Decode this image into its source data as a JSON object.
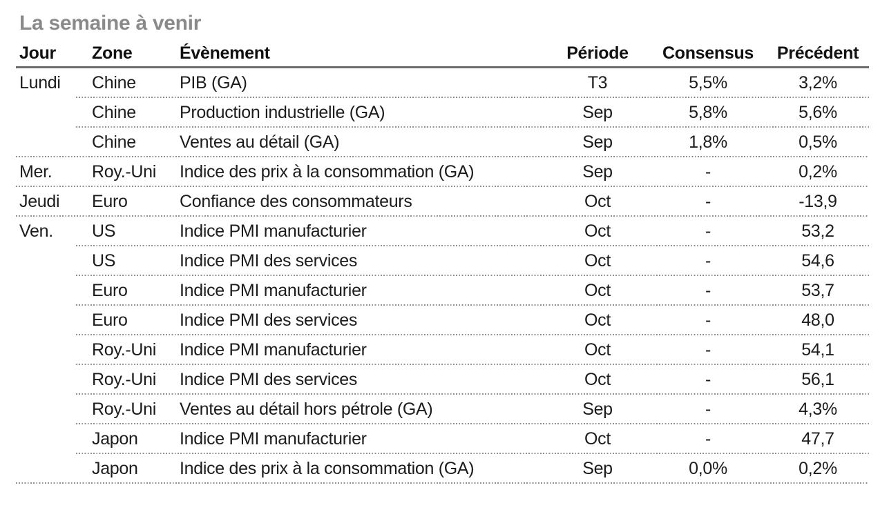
{
  "title": "La semaine à venir",
  "table": {
    "columns": [
      "Jour",
      "Zone",
      "Évènement",
      "Période",
      "Consensus",
      "Précédent"
    ],
    "rows": [
      {
        "day": "Lundi",
        "zone": "Chine",
        "event": "PIB (GA)",
        "period": "T3",
        "consensus": "5,5%",
        "previous": "3,2%"
      },
      {
        "day": "",
        "zone": "Chine",
        "event": "Production industrielle (GA)",
        "period": "Sep",
        "consensus": "5,8%",
        "previous": "5,6%"
      },
      {
        "day": "",
        "zone": "Chine",
        "event": "Ventes au détail (GA)",
        "period": "Sep",
        "consensus": "1,8%",
        "previous": "0,5%"
      },
      {
        "day": "Mer.",
        "zone": "Roy.-Uni",
        "event": "Indice des prix à la consommation (GA)",
        "period": "Sep",
        "consensus": "-",
        "previous": "0,2%"
      },
      {
        "day": "Jeudi",
        "zone": "Euro",
        "event": "Confiance des consommateurs",
        "period": "Oct",
        "consensus": "-",
        "previous": "-13,9"
      },
      {
        "day": "Ven.",
        "zone": "US",
        "event": "Indice PMI manufacturier",
        "period": "Oct",
        "consensus": "-",
        "previous": "53,2"
      },
      {
        "day": "",
        "zone": "US",
        "event": "Indice PMI des services",
        "period": "Oct",
        "consensus": "-",
        "previous": "54,6"
      },
      {
        "day": "",
        "zone": "Euro",
        "event": "Indice PMI manufacturier",
        "period": "Oct",
        "consensus": "-",
        "previous": "53,7"
      },
      {
        "day": "",
        "zone": "Euro",
        "event": "Indice PMI des services",
        "period": "Oct",
        "consensus": "-",
        "previous": "48,0"
      },
      {
        "day": "",
        "zone": "Roy.-Uni",
        "event": "Indice PMI manufacturier",
        "period": "Oct",
        "consensus": "-",
        "previous": "54,1"
      },
      {
        "day": "",
        "zone": "Roy.-Uni",
        "event": "Indice PMI des services",
        "period": "Oct",
        "consensus": "-",
        "previous": "56,1"
      },
      {
        "day": "",
        "zone": "Roy.-Uni",
        "event": "Ventes au détail hors pétrole (GA)",
        "period": "Sep",
        "consensus": "-",
        "previous": "4,3%"
      },
      {
        "day": "",
        "zone": "Japon",
        "event": "Indice PMI manufacturier",
        "period": "Oct",
        "consensus": "-",
        "previous": "47,7"
      },
      {
        "day": "",
        "zone": "Japon",
        "event": "Indice des prix à la consommation (GA)",
        "period": "Sep",
        "consensus": "0,0%",
        "previous": "0,2%"
      }
    ]
  },
  "colors": {
    "title_text": "#8a8a8a",
    "header_text": "#111111",
    "body_text": "#1c1c1c",
    "header_rule": "#6b6b6b",
    "dotted_separator": "#8f8f8f"
  }
}
